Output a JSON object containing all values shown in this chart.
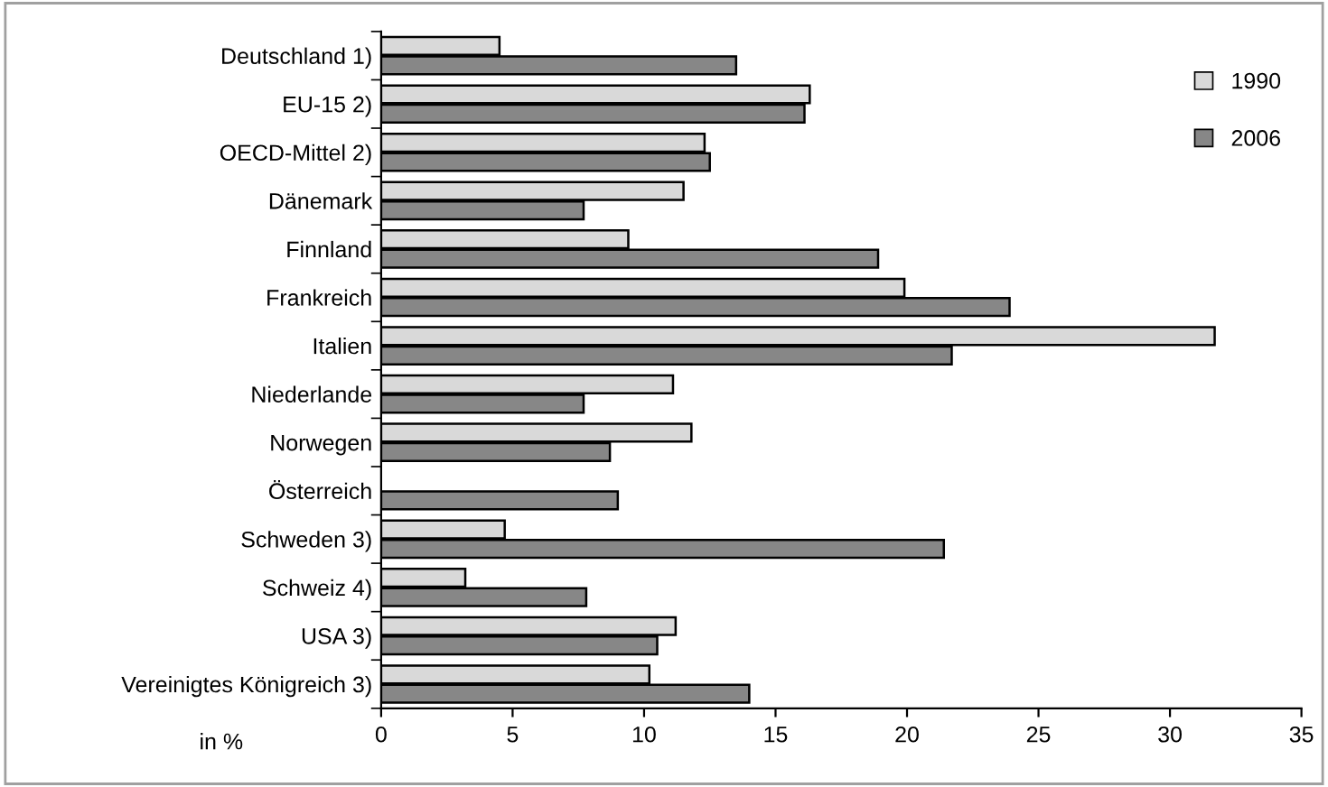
{
  "chart_data": {
    "type": "bar",
    "orientation": "horizontal",
    "categories": [
      "Deutschland 1)",
      "EU-15 2)",
      "OECD-Mittel 2)",
      "Dänemark",
      "Finnland",
      "Frankreich",
      "Italien",
      "Niederlande",
      "Norwegen",
      "Österreich",
      "Schweden 3)",
      "Schweiz 4)",
      "USA 3)",
      "Vereinigtes Königreich 3)"
    ],
    "series": [
      {
        "name": "1990",
        "color": "#d9d9d9",
        "values": [
          4.5,
          16.3,
          12.3,
          11.5,
          9.4,
          19.9,
          31.7,
          11.1,
          11.8,
          null,
          4.7,
          3.2,
          11.2,
          10.2
        ]
      },
      {
        "name": "2006",
        "color": "#878787",
        "values": [
          13.5,
          16.1,
          12.5,
          7.7,
          18.9,
          23.9,
          21.7,
          7.7,
          8.7,
          9.0,
          21.4,
          7.8,
          10.5,
          14.0
        ]
      }
    ],
    "xlim": [
      0,
      35
    ],
    "xticks": [
      0,
      5,
      10,
      15,
      20,
      25,
      30,
      35
    ],
    "grid": false,
    "legend": "top right",
    "annotations": [
      "in %"
    ]
  }
}
